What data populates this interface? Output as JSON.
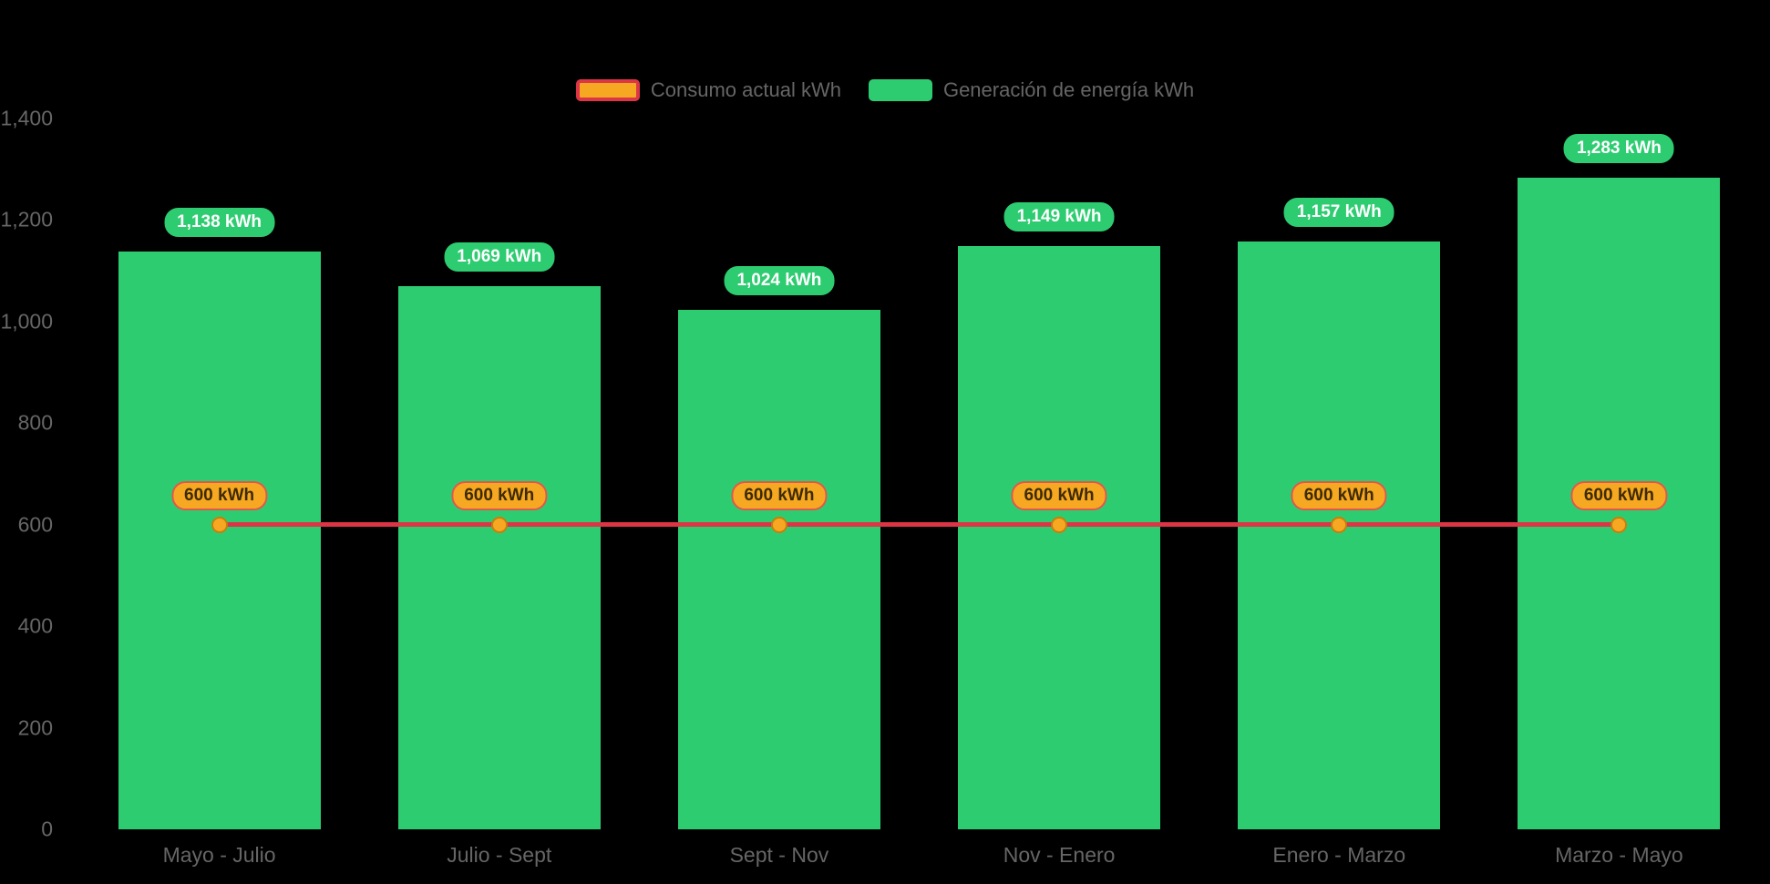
{
  "legend": {
    "items": [
      {
        "label": "Consumo actual kWh",
        "color": "#f7a823",
        "border": "#dc3545"
      },
      {
        "label": "Generación de energía kWh",
        "color": "#2ecc71"
      }
    ]
  },
  "chart_data": {
    "type": "bar",
    "categories": [
      "Mayo - Julio",
      "Julio - Sept",
      "Sept - Nov",
      "Nov - Enero",
      "Enero - Marzo",
      "Marzo - Mayo"
    ],
    "series": [
      {
        "name": "Consumo actual kWh",
        "type": "line",
        "values": [
          600,
          600,
          600,
          600,
          600,
          600
        ],
        "labels": [
          "600 kWh",
          "600 kWh",
          "600 kWh",
          "600 kWh",
          "600 kWh",
          "600 kWh"
        ]
      },
      {
        "name": "Generación de energía kWh",
        "type": "bar",
        "values": [
          1138,
          1069,
          1024,
          1149,
          1157,
          1283
        ],
        "labels": [
          "1,138 kWh",
          "1,069 kWh",
          "1,024 kWh",
          "1,149 kWh",
          "1,157 kWh",
          "1,283 kWh"
        ]
      }
    ],
    "title": "",
    "xlabel": "",
    "ylabel": "",
    "ylim": [
      0,
      1400
    ],
    "yticks": [
      0,
      200,
      400,
      600,
      800,
      1000,
      1200,
      1400
    ],
    "ytick_labels": [
      "0",
      "200",
      "400",
      "600",
      "800",
      "1,000",
      "1,200",
      "1,400"
    ],
    "legend_position": "top",
    "grid": false,
    "colors": {
      "bar": "#2ecc71",
      "line": "#dc3545",
      "marker": "#f7a823",
      "background": "#000000",
      "axis_text": "#666666"
    }
  }
}
